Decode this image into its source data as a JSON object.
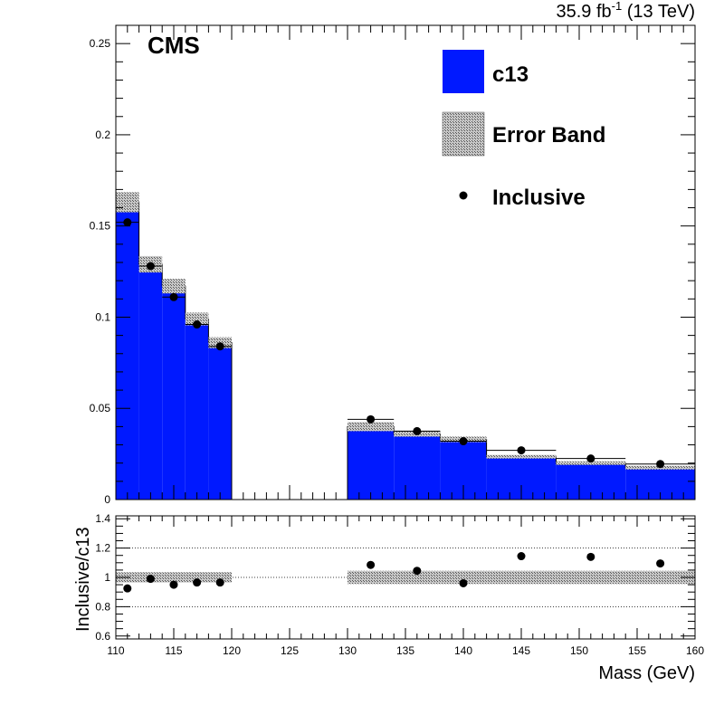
{
  "header": {
    "cms_label": "CMS",
    "lumi_label": "35.9 fb",
    "lumi_sup": "-1",
    "lumi_energy": " (13 TeV)"
  },
  "colors": {
    "hist": "#0019ff",
    "band": "#9a9a9a",
    "points": "#000000"
  },
  "chart_data": [
    {
      "type": "bar",
      "panel": "main",
      "xlim": [
        110,
        160
      ],
      "ylim": [
        0,
        0.26
      ],
      "xlabel": "",
      "ylabel": "",
      "yticks": [
        0,
        0.05,
        0.1,
        0.15,
        0.2,
        0.25
      ],
      "ytick_labels": [
        "0",
        "0.05",
        "0.1",
        "0.15",
        "0.2",
        "0.25"
      ],
      "bins": [
        {
          "lo": 110,
          "hi": 112,
          "c13": 0.163,
          "err": 0.0055,
          "inclusive": 0.152
        },
        {
          "lo": 112,
          "hi": 114,
          "c13": 0.129,
          "err": 0.0045,
          "inclusive": 0.128
        },
        {
          "lo": 114,
          "hi": 116,
          "c13": 0.117,
          "err": 0.004,
          "inclusive": 0.111
        },
        {
          "lo": 116,
          "hi": 118,
          "c13": 0.099,
          "err": 0.0035,
          "inclusive": 0.096
        },
        {
          "lo": 118,
          "hi": 120,
          "c13": 0.086,
          "err": 0.003,
          "inclusive": 0.084
        },
        {
          "lo": 120,
          "hi": 130,
          "c13": 0,
          "err": 0,
          "inclusive": null
        },
        {
          "lo": 130,
          "hi": 134,
          "c13": 0.04,
          "err": 0.0025,
          "inclusive": 0.044
        },
        {
          "lo": 134,
          "hi": 138,
          "c13": 0.036,
          "err": 0.0015,
          "inclusive": 0.0375
        },
        {
          "lo": 138,
          "hi": 142,
          "c13": 0.033,
          "err": 0.0015,
          "inclusive": 0.032
        },
        {
          "lo": 142,
          "hi": 148,
          "c13": 0.0235,
          "err": 0.001,
          "inclusive": 0.027
        },
        {
          "lo": 148,
          "hi": 154,
          "c13": 0.02,
          "err": 0.001,
          "inclusive": 0.0225
        },
        {
          "lo": 154,
          "hi": 160,
          "c13": 0.0175,
          "err": 0.001,
          "inclusive": 0.0195
        }
      ],
      "point_x": [
        111,
        113,
        115,
        117,
        119,
        null,
        132,
        136,
        140,
        145,
        151,
        157
      ],
      "legend": [
        {
          "label": "c13",
          "kind": "fill"
        },
        {
          "label": "Error Band",
          "kind": "hatch"
        },
        {
          "label": "Inclusive",
          "kind": "marker"
        }
      ],
      "legend_position": "top-right"
    },
    {
      "type": "scatter",
      "panel": "ratio",
      "xlim": [
        110,
        160
      ],
      "ylim": [
        0.58,
        1.42
      ],
      "xlabel": "Mass (GeV)",
      "ylabel": "Inclusive/c13",
      "xticks": [
        110,
        115,
        120,
        125,
        130,
        135,
        140,
        145,
        150,
        155,
        160
      ],
      "xtick_labels": [
        "110",
        "115",
        "120",
        "125",
        "130",
        "135",
        "140",
        "145",
        "150",
        "155",
        "160"
      ],
      "yticks": [
        0.6,
        0.8,
        1,
        1.2,
        1.4
      ],
      "ytick_labels": [
        "0.6",
        "0.8",
        "1",
        "1.2",
        "1.4"
      ],
      "gridlines_y": [
        0.8,
        1,
        1.2
      ],
      "bins": [
        {
          "lo": 110,
          "hi": 112,
          "x": 111,
          "ratio": 0.925,
          "band": 0.035
        },
        {
          "lo": 112,
          "hi": 114,
          "x": 113,
          "ratio": 0.99,
          "band": 0.035
        },
        {
          "lo": 114,
          "hi": 116,
          "x": 115,
          "ratio": 0.95,
          "band": 0.035
        },
        {
          "lo": 116,
          "hi": 118,
          "x": 117,
          "ratio": 0.965,
          "band": 0.035
        },
        {
          "lo": 118,
          "hi": 120,
          "x": 119,
          "ratio": 0.965,
          "band": 0.035
        },
        {
          "lo": 130,
          "hi": 134,
          "x": 132,
          "ratio": 1.085,
          "band": 0.045
        },
        {
          "lo": 134,
          "hi": 138,
          "x": 136,
          "ratio": 1.045,
          "band": 0.045
        },
        {
          "lo": 138,
          "hi": 142,
          "x": 140,
          "ratio": 0.96,
          "band": 0.045
        },
        {
          "lo": 142,
          "hi": 148,
          "x": 145,
          "ratio": 1.145,
          "band": 0.045
        },
        {
          "lo": 148,
          "hi": 154,
          "x": 151,
          "ratio": 1.14,
          "band": 0.045
        },
        {
          "lo": 154,
          "hi": 160,
          "x": 157,
          "ratio": 1.095,
          "band": 0.045
        }
      ]
    }
  ]
}
